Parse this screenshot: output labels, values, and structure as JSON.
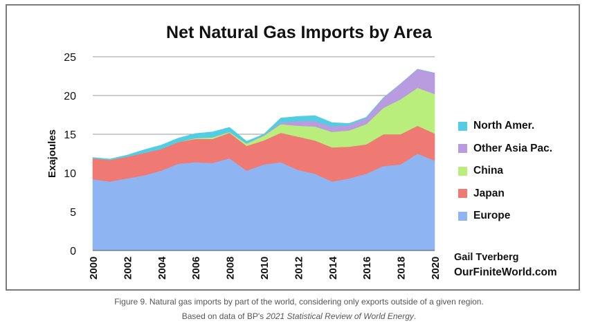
{
  "chart_data": {
    "type": "area",
    "stacked": true,
    "title": "Net Natural Gas Imports by Area",
    "ylabel": "Exajoules",
    "xlabel": "",
    "ylim": [
      0,
      25
    ],
    "yticks": [
      "0",
      "5",
      "10",
      "15",
      "20",
      "25"
    ],
    "xtick_labels": [
      "2000",
      "2002",
      "2004",
      "2006",
      "2008",
      "2010",
      "2012",
      "2014",
      "2016",
      "2018",
      "2020"
    ],
    "x": [
      2000,
      2001,
      2002,
      2003,
      2004,
      2005,
      2006,
      2007,
      2008,
      2009,
      2010,
      2011,
      2012,
      2013,
      2014,
      2015,
      2016,
      2017,
      2018,
      2019,
      2020
    ],
    "grid": "horizontal",
    "legend_position": "right",
    "series": [
      {
        "name": "Europe",
        "color": "#8fb4f2",
        "values": [
          9.2,
          8.9,
          9.3,
          9.7,
          10.3,
          11.2,
          11.4,
          11.3,
          11.9,
          10.3,
          11.1,
          11.4,
          10.4,
          9.9,
          8.9,
          9.3,
          9.9,
          10.9,
          11.1,
          12.5,
          11.6
        ]
      },
      {
        "name": "Japan",
        "color": "#ef7a73",
        "values": [
          2.7,
          2.8,
          2.8,
          2.9,
          2.8,
          2.8,
          3.0,
          3.1,
          3.3,
          3.2,
          3.1,
          3.8,
          4.3,
          4.3,
          4.4,
          4.1,
          3.8,
          4.1,
          3.9,
          3.6,
          3.5
        ]
      },
      {
        "name": "China",
        "color": "#b9ee7c",
        "values": [
          0,
          0,
          0,
          0,
          0,
          0,
          0.1,
          0.2,
          0.1,
          0.3,
          0.6,
          1.1,
          1.4,
          1.8,
          2.0,
          2.1,
          2.6,
          3.4,
          4.5,
          4.9,
          5.1
        ]
      },
      {
        "name": "Other Asia Pac.",
        "color": "#b99be0",
        "values": [
          0,
          0,
          0,
          0,
          0,
          0,
          0,
          0,
          0,
          0,
          0.1,
          0.2,
          0.6,
          0.7,
          0.7,
          0.7,
          0.8,
          1.3,
          2.0,
          2.4,
          2.7
        ]
      },
      {
        "name": "North Amer.",
        "color": "#53cde3",
        "values": [
          0.1,
          0.1,
          0.2,
          0.4,
          0.5,
          0.5,
          0.6,
          0.7,
          0.6,
          0.3,
          0.1,
          0.6,
          0.6,
          0.7,
          0.5,
          0.2,
          0.1,
          0,
          0,
          0,
          0
        ]
      }
    ],
    "legend_order": [
      "North Amer.",
      "Other Asia Pac.",
      "China",
      "Japan",
      "Europe"
    ]
  },
  "credit": {
    "author": "Gail Tverberg",
    "site": "OurFiniteWorld.com"
  },
  "caption": {
    "line1": "Figure 9. Natural gas imports by part of the world, considering only exports outside of a given region.",
    "line2_prefix": "Based on data of BP's ",
    "line2_italic": "2021 Statistical Review of World Energy",
    "line2_suffix": "."
  }
}
